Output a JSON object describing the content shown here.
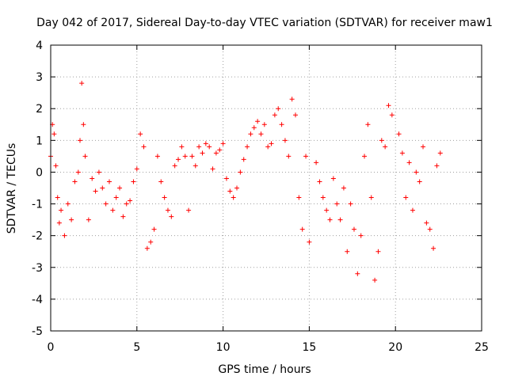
{
  "chart_data": {
    "type": "scatter",
    "title": "Day 042 of 2017, Sidereal Day-to-day VTEC variation (SDTVAR) for receiver maw1",
    "xlabel": "GPS time / hours",
    "ylabel": "SDTVAR / TECUs",
    "xlim": [
      0,
      25
    ],
    "ylim": [
      -5,
      4
    ],
    "xticks": [
      0,
      5,
      10,
      15,
      20,
      25
    ],
    "yticks": [
      -5,
      -4,
      -3,
      -2,
      -1,
      0,
      1,
      2,
      3,
      4
    ],
    "grid": true,
    "marker": "+",
    "marker_color": "#ff0000",
    "series": [
      {
        "name": "SDTVAR",
        "x": [
          0.0,
          0.1,
          0.2,
          0.3,
          0.4,
          0.5,
          0.6,
          0.8,
          1.0,
          1.2,
          1.4,
          1.6,
          1.7,
          1.8,
          1.9,
          2.0,
          2.2,
          2.4,
          2.6,
          2.8,
          3.0,
          3.2,
          3.4,
          3.6,
          3.8,
          4.0,
          4.2,
          4.4,
          4.6,
          4.8,
          5.0,
          5.2,
          5.4,
          5.6,
          5.8,
          6.0,
          6.2,
          6.4,
          6.6,
          6.8,
          7.0,
          7.2,
          7.4,
          7.6,
          7.8,
          8.0,
          8.2,
          8.4,
          8.6,
          8.8,
          9.0,
          9.2,
          9.4,
          9.6,
          9.8,
          10.0,
          10.2,
          10.4,
          10.6,
          10.8,
          11.0,
          11.2,
          11.4,
          11.6,
          11.8,
          12.0,
          12.2,
          12.4,
          12.6,
          12.8,
          13.0,
          13.2,
          13.4,
          13.6,
          13.8,
          14.0,
          14.2,
          14.4,
          14.6,
          14.8,
          15.0,
          15.4,
          15.6,
          15.8,
          16.0,
          16.2,
          16.4,
          16.6,
          16.8,
          17.0,
          17.2,
          17.4,
          17.6,
          17.8,
          18.0,
          18.2,
          18.4,
          18.6,
          18.8,
          19.0,
          19.2,
          19.4,
          19.6,
          19.8,
          20.2,
          20.4,
          20.6,
          20.8,
          21.0,
          21.2,
          21.4,
          21.6,
          21.8,
          22.0,
          22.2,
          22.4,
          22.6
        ],
        "y": [
          0.5,
          1.5,
          1.2,
          0.2,
          -0.8,
          -1.6,
          -1.2,
          -2.0,
          -1.0,
          -1.5,
          -0.3,
          0.0,
          1.0,
          2.8,
          1.5,
          0.5,
          -1.5,
          -0.2,
          -0.6,
          0.0,
          -0.5,
          -1.0,
          -0.3,
          -1.2,
          -0.8,
          -0.5,
          -1.4,
          -1.0,
          -0.9,
          -0.3,
          0.1,
          1.2,
          0.8,
          -2.4,
          -2.2,
          -1.8,
          0.5,
          -0.3,
          -0.8,
          -1.2,
          -1.4,
          0.2,
          0.4,
          0.8,
          0.5,
          -1.2,
          0.5,
          0.2,
          0.8,
          0.6,
          0.9,
          0.8,
          0.1,
          0.6,
          0.7,
          0.9,
          -0.2,
          -0.6,
          -0.8,
          -0.5,
          0.0,
          0.4,
          0.8,
          1.2,
          1.4,
          1.6,
          1.2,
          1.5,
          0.8,
          0.9,
          1.8,
          2.0,
          1.5,
          1.0,
          0.5,
          2.3,
          1.8,
          -0.8,
          -1.8,
          0.5,
          -2.2,
          0.3,
          -0.3,
          -0.8,
          -1.2,
          -1.5,
          -0.2,
          -1.0,
          -1.5,
          -0.5,
          -2.5,
          -1.0,
          -1.8,
          -3.2,
          -2.0,
          0.5,
          1.5,
          -0.8,
          -3.4,
          -2.5,
          1.0,
          0.8,
          2.1,
          1.8,
          1.2,
          0.6,
          -0.8,
          0.3,
          -1.2,
          0.0,
          -0.3,
          0.8,
          -1.6,
          -1.8,
          -2.4,
          0.2,
          0.6
        ]
      }
    ]
  }
}
